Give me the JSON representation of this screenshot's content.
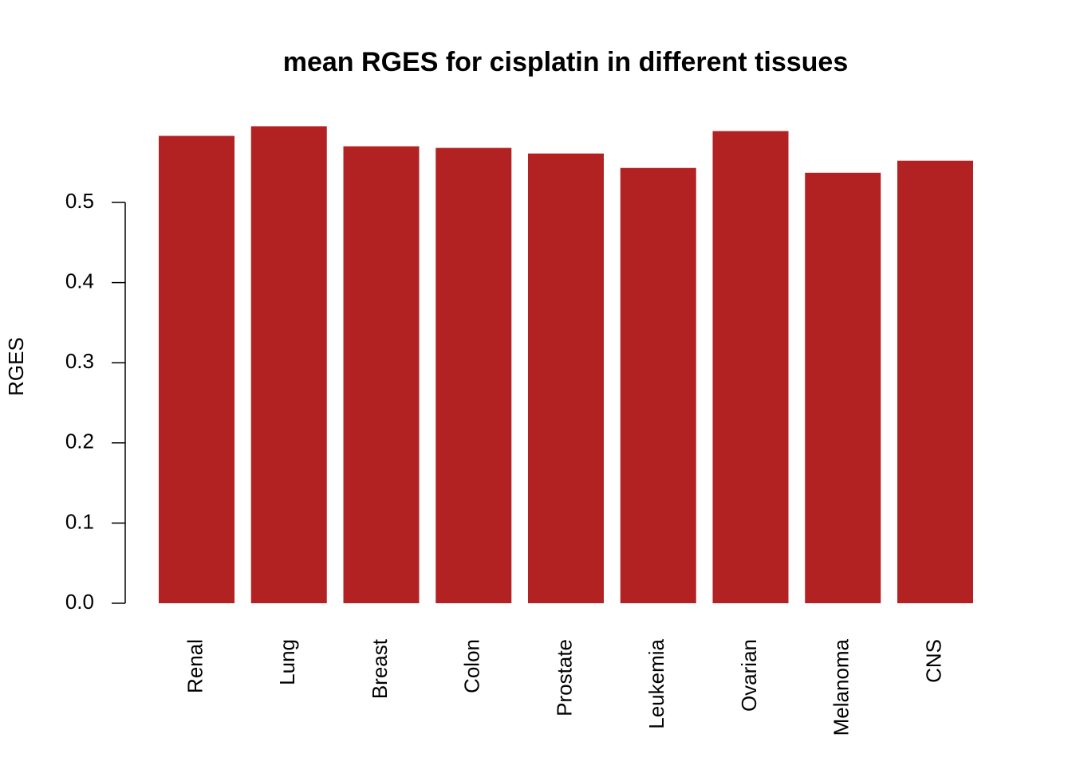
{
  "chart_data": {
    "type": "bar",
    "title": "mean RGES for cisplatin in different tissues",
    "y_label": "RGES",
    "categories": [
      "Renal",
      "Lung",
      "Breast",
      "Colon",
      "Prostate",
      "Leukemia",
      "Ovarian",
      "Melanoma",
      "CNS"
    ],
    "values": [
      0.583,
      0.595,
      0.57,
      0.568,
      0.561,
      0.543,
      0.589,
      0.537,
      0.552
    ],
    "color": "#b22222",
    "ylim": [
      0,
      0.6
    ],
    "yticks": [
      {
        "value": 0,
        "label": "0.0"
      },
      0.1,
      0.2,
      0.3,
      0.4,
      0.5
    ],
    "grid": false
  }
}
